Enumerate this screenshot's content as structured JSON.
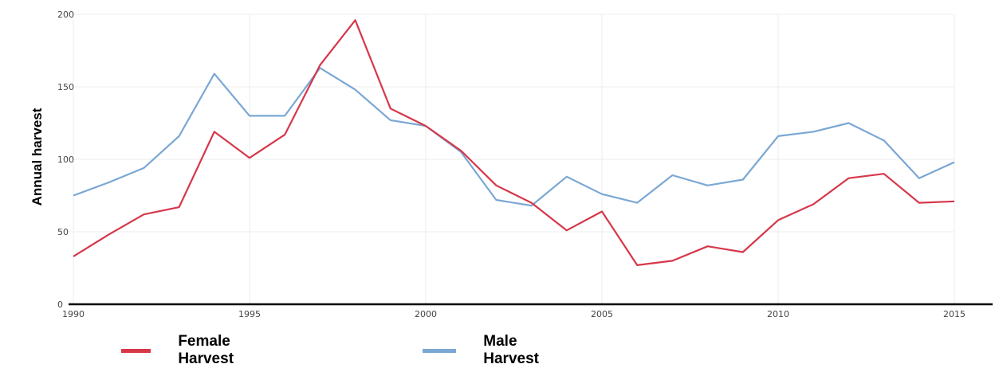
{
  "chart_data": {
    "type": "line",
    "title": "",
    "xlabel": "",
    "ylabel": "Annual harvest",
    "x": [
      1990,
      1991,
      1992,
      1993,
      1994,
      1995,
      1996,
      1997,
      1998,
      1999,
      2000,
      2001,
      2002,
      2003,
      2004,
      2005,
      2006,
      2007,
      2008,
      2009,
      2010,
      2011,
      2012,
      2013,
      2014,
      2015
    ],
    "xlim": [
      1990,
      2015
    ],
    "ylim": [
      0,
      200
    ],
    "xticks": [
      "1990",
      "1995",
      "2000",
      "2005",
      "2010",
      "2015"
    ],
    "yticks": [
      "0",
      "50",
      "100",
      "150",
      "200"
    ],
    "grid": true,
    "legend_position": "bottom",
    "series": [
      {
        "name": "Female Harvest",
        "color": "#d6374a",
        "values": [
          33,
          48,
          62,
          67,
          119,
          101,
          117,
          165,
          196,
          135,
          123,
          106,
          82,
          70,
          51,
          64,
          27,
          30,
          40,
          36,
          58,
          69,
          87,
          90,
          70,
          71
        ]
      },
      {
        "name": "Male Harvest",
        "color": "#7aa7d4",
        "values": [
          75,
          84,
          94,
          116,
          159,
          130,
          130,
          163,
          148,
          127,
          123,
          105,
          72,
          68,
          88,
          76,
          70,
          89,
          82,
          86,
          116,
          119,
          125,
          113,
          87,
          98
        ]
      }
    ]
  }
}
